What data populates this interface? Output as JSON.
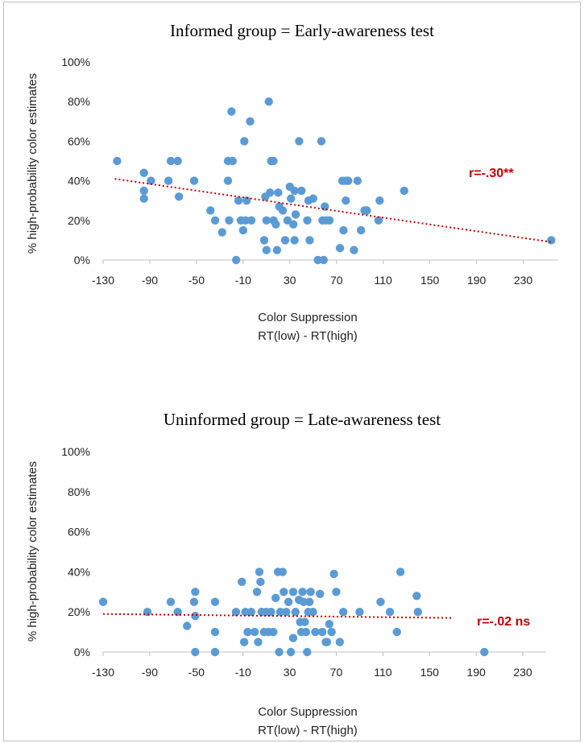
{
  "chart_data": [
    {
      "type": "scatter",
      "title": "Informed group = Early-awareness test",
      "xlabel": "Color Suppression",
      "xlabel2": "RT(low) - RT(high)",
      "ylabel": "% high-probability color estimates",
      "xlim": [
        -130,
        260
      ],
      "ylim": [
        0,
        100
      ],
      "xticks": [
        "-130",
        "-90",
        "-50",
        "-10",
        "30",
        "70",
        "110",
        "150",
        "190",
        "230"
      ],
      "yticks": [
        "0%",
        "20%",
        "40%",
        "60%",
        "80%",
        "100%"
      ],
      "point_color": "#5b9bd5",
      "trend_color": "#c00000",
      "trendline": {
        "x": [
          -120,
          255
        ],
        "y": [
          41,
          9
        ]
      },
      "annotation": "r=-.30**",
      "points": [
        {
          "x": -118,
          "y": 50
        },
        {
          "x": -95,
          "y": 44
        },
        {
          "x": -95,
          "y": 35
        },
        {
          "x": -95,
          "y": 31
        },
        {
          "x": -89,
          "y": 40
        },
        {
          "x": -74,
          "y": 40
        },
        {
          "x": -72,
          "y": 50
        },
        {
          "x": -66,
          "y": 50
        },
        {
          "x": -65,
          "y": 32
        },
        {
          "x": -52,
          "y": 40
        },
        {
          "x": -38,
          "y": 25
        },
        {
          "x": -34,
          "y": 20
        },
        {
          "x": -28,
          "y": 14
        },
        {
          "x": -23,
          "y": 50
        },
        {
          "x": -23,
          "y": 40
        },
        {
          "x": -22,
          "y": 20
        },
        {
          "x": -20,
          "y": 75
        },
        {
          "x": -19,
          "y": 50
        },
        {
          "x": -16,
          "y": 0
        },
        {
          "x": -14,
          "y": 30
        },
        {
          "x": -12,
          "y": 20
        },
        {
          "x": -10,
          "y": 15
        },
        {
          "x": -9,
          "y": 60
        },
        {
          "x": -8,
          "y": 20
        },
        {
          "x": -7,
          "y": 30
        },
        {
          "x": -4,
          "y": 70
        },
        {
          "x": -3,
          "y": 20
        },
        {
          "x": 8,
          "y": 10
        },
        {
          "x": 9,
          "y": 32
        },
        {
          "x": 10,
          "y": 5
        },
        {
          "x": 10,
          "y": 20
        },
        {
          "x": 12,
          "y": 80
        },
        {
          "x": 13,
          "y": 34
        },
        {
          "x": 14,
          "y": 50
        },
        {
          "x": 16,
          "y": 50
        },
        {
          "x": 16,
          "y": 20
        },
        {
          "x": 18,
          "y": 18
        },
        {
          "x": 19,
          "y": 5
        },
        {
          "x": 20,
          "y": 34
        },
        {
          "x": 21,
          "y": 27
        },
        {
          "x": 24,
          "y": 25
        },
        {
          "x": 26,
          "y": 10
        },
        {
          "x": 28,
          "y": 20
        },
        {
          "x": 30,
          "y": 37
        },
        {
          "x": 31,
          "y": 31
        },
        {
          "x": 33,
          "y": 18
        },
        {
          "x": 34,
          "y": 35
        },
        {
          "x": 34,
          "y": 10
        },
        {
          "x": 35,
          "y": 23
        },
        {
          "x": 38,
          "y": 60
        },
        {
          "x": 40,
          "y": 35
        },
        {
          "x": 45,
          "y": 20
        },
        {
          "x": 46,
          "y": 30
        },
        {
          "x": 47,
          "y": 10
        },
        {
          "x": 50,
          "y": 31
        },
        {
          "x": 54,
          "y": 0
        },
        {
          "x": 57,
          "y": 60
        },
        {
          "x": 58,
          "y": 20
        },
        {
          "x": 59,
          "y": 0
        },
        {
          "x": 60,
          "y": 27
        },
        {
          "x": 61,
          "y": 20
        },
        {
          "x": 64,
          "y": 20
        },
        {
          "x": 73,
          "y": 6
        },
        {
          "x": 75,
          "y": 40
        },
        {
          "x": 76,
          "y": 15
        },
        {
          "x": 78,
          "y": 40
        },
        {
          "x": 78,
          "y": 30
        },
        {
          "x": 80,
          "y": 40
        },
        {
          "x": 85,
          "y": 5
        },
        {
          "x": 88,
          "y": 40
        },
        {
          "x": 91,
          "y": 15
        },
        {
          "x": 94,
          "y": 25
        },
        {
          "x": 96,
          "y": 25
        },
        {
          "x": 106,
          "y": 20
        },
        {
          "x": 107,
          "y": 30
        },
        {
          "x": 128,
          "y": 35
        },
        {
          "x": 254,
          "y": 10
        }
      ]
    },
    {
      "type": "scatter",
      "title": "Uninformed group = Late-awareness test",
      "xlabel": "Color Suppression",
      "xlabel2": "RT(low) - RT(high)",
      "ylabel": "% high-probability color estimates",
      "xlim": [
        -130,
        250
      ],
      "ylim": [
        0,
        100
      ],
      "xticks": [
        "-130",
        "-90",
        "-50",
        "-10",
        "30",
        "70",
        "110",
        "150",
        "190",
        "230"
      ],
      "yticks": [
        "0%",
        "20%",
        "40%",
        "60%",
        "80%",
        "100%"
      ],
      "point_color": "#5b9bd5",
      "trend_color": "#c00000",
      "trendline": {
        "x": [
          -130,
          170
        ],
        "y": [
          19,
          17
        ]
      },
      "annotation": "r=-.02 ns",
      "points": [
        {
          "x": -130,
          "y": 25
        },
        {
          "x": -92,
          "y": 20
        },
        {
          "x": -72,
          "y": 25
        },
        {
          "x": -66,
          "y": 20
        },
        {
          "x": -58,
          "y": 13
        },
        {
          "x": -52,
          "y": 25
        },
        {
          "x": -51,
          "y": 30
        },
        {
          "x": -51,
          "y": 18
        },
        {
          "x": -51,
          "y": 0
        },
        {
          "x": -34,
          "y": 25
        },
        {
          "x": -34,
          "y": 10
        },
        {
          "x": -34,
          "y": 0
        },
        {
          "x": -16,
          "y": 20
        },
        {
          "x": -11,
          "y": 35
        },
        {
          "x": -9,
          "y": 5
        },
        {
          "x": -8,
          "y": 20
        },
        {
          "x": -6,
          "y": 10
        },
        {
          "x": -3,
          "y": 20
        },
        {
          "x": 0,
          "y": 10
        },
        {
          "x": 2,
          "y": 30
        },
        {
          "x": 3,
          "y": 5
        },
        {
          "x": 4,
          "y": 40
        },
        {
          "x": 5,
          "y": 35
        },
        {
          "x": 6,
          "y": 20
        },
        {
          "x": 8,
          "y": 10
        },
        {
          "x": 10,
          "y": 20
        },
        {
          "x": 12,
          "y": 10
        },
        {
          "x": 14,
          "y": 20
        },
        {
          "x": 16,
          "y": 10
        },
        {
          "x": 18,
          "y": 27
        },
        {
          "x": 20,
          "y": 40
        },
        {
          "x": 21,
          "y": 0
        },
        {
          "x": 22,
          "y": 20
        },
        {
          "x": 24,
          "y": 40
        },
        {
          "x": 25,
          "y": 30
        },
        {
          "x": 27,
          "y": 20
        },
        {
          "x": 29,
          "y": 25
        },
        {
          "x": 31,
          "y": 0
        },
        {
          "x": 33,
          "y": 30
        },
        {
          "x": 33,
          "y": 7
        },
        {
          "x": 35,
          "y": 20
        },
        {
          "x": 38,
          "y": 26
        },
        {
          "x": 39,
          "y": 15
        },
        {
          "x": 40,
          "y": 10
        },
        {
          "x": 41,
          "y": 30
        },
        {
          "x": 42,
          "y": 25
        },
        {
          "x": 43,
          "y": 15
        },
        {
          "x": 44,
          "y": 10
        },
        {
          "x": 45,
          "y": 0
        },
        {
          "x": 46,
          "y": 20
        },
        {
          "x": 47,
          "y": 25
        },
        {
          "x": 48,
          "y": 30
        },
        {
          "x": 50,
          "y": 20
        },
        {
          "x": 52,
          "y": 10
        },
        {
          "x": 56,
          "y": 29
        },
        {
          "x": 58,
          "y": 10
        },
        {
          "x": 61,
          "y": 5
        },
        {
          "x": 62,
          "y": 5
        },
        {
          "x": 64,
          "y": 14
        },
        {
          "x": 66,
          "y": 10
        },
        {
          "x": 68,
          "y": 39
        },
        {
          "x": 70,
          "y": 30
        },
        {
          "x": 73,
          "y": 5
        },
        {
          "x": 76,
          "y": 20
        },
        {
          "x": 90,
          "y": 20
        },
        {
          "x": 108,
          "y": 25
        },
        {
          "x": 116,
          "y": 20
        },
        {
          "x": 122,
          "y": 10
        },
        {
          "x": 125,
          "y": 40
        },
        {
          "x": 139,
          "y": 28
        },
        {
          "x": 140,
          "y": 20
        },
        {
          "x": 197,
          "y": 0
        }
      ]
    }
  ]
}
